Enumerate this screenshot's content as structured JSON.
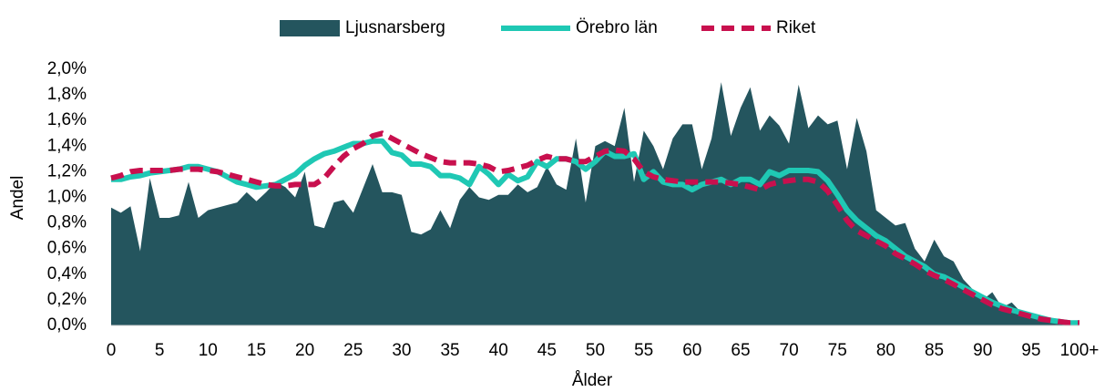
{
  "chart_data": {
    "type": "area-line",
    "categories": [
      "0",
      null,
      null,
      null,
      null,
      "5",
      null,
      null,
      null,
      null,
      "10",
      null,
      null,
      null,
      null,
      "15",
      null,
      null,
      null,
      null,
      "20",
      null,
      null,
      null,
      null,
      "25",
      null,
      null,
      null,
      null,
      "30",
      null,
      null,
      null,
      null,
      "35",
      null,
      null,
      null,
      null,
      "40",
      null,
      null,
      null,
      null,
      "45",
      null,
      null,
      null,
      null,
      "50",
      null,
      null,
      null,
      null,
      "55",
      null,
      null,
      null,
      null,
      "60",
      null,
      null,
      null,
      null,
      "65",
      null,
      null,
      null,
      null,
      "70",
      null,
      null,
      null,
      null,
      "75",
      null,
      null,
      null,
      null,
      "80",
      null,
      null,
      null,
      null,
      "85",
      null,
      null,
      null,
      null,
      "90",
      null,
      null,
      null,
      null,
      "95",
      null,
      null,
      null,
      null,
      "100+"
    ],
    "series": [
      {
        "name": "Ljusnarsberg",
        "color": "#24555e",
        "kind": "area",
        "values": [
          0.92,
          0.88,
          0.93,
          0.58,
          1.15,
          0.84,
          0.84,
          0.86,
          1.12,
          0.84,
          0.9,
          0.92,
          0.94,
          0.96,
          1.04,
          0.97,
          1.04,
          1.12,
          1.08,
          1.0,
          1.2,
          0.78,
          0.76,
          0.96,
          0.98,
          0.88,
          1.07,
          1.26,
          1.04,
          1.04,
          1.02,
          0.73,
          0.71,
          0.75,
          0.9,
          0.76,
          0.98,
          1.08,
          1.0,
          0.98,
          1.02,
          1.02,
          1.1,
          1.04,
          1.08,
          1.24,
          1.1,
          1.06,
          1.46,
          0.96,
          1.4,
          1.44,
          1.4,
          1.7,
          1.12,
          1.52,
          1.4,
          1.22,
          1.46,
          1.57,
          1.57,
          1.22,
          1.46,
          1.9,
          1.48,
          1.7,
          1.86,
          1.52,
          1.64,
          1.56,
          1.42,
          1.88,
          1.54,
          1.64,
          1.57,
          1.6,
          1.22,
          1.62,
          1.36,
          0.9,
          0.84,
          0.78,
          0.8,
          0.6,
          0.5,
          0.67,
          0.54,
          0.5,
          0.36,
          0.28,
          0.2,
          0.26,
          0.14,
          0.18,
          0.1,
          0.08,
          0.05,
          0.04,
          0.03,
          0.02,
          0.03
        ]
      },
      {
        "name": "Örebro län",
        "color": "#1fc8b4",
        "kind": "line",
        "values": [
          1.14,
          1.14,
          1.16,
          1.17,
          1.19,
          1.2,
          1.21,
          1.22,
          1.24,
          1.24,
          1.22,
          1.2,
          1.16,
          1.12,
          1.1,
          1.08,
          1.09,
          1.1,
          1.14,
          1.18,
          1.25,
          1.3,
          1.34,
          1.36,
          1.39,
          1.42,
          1.42,
          1.44,
          1.44,
          1.35,
          1.33,
          1.26,
          1.26,
          1.24,
          1.17,
          1.17,
          1.15,
          1.1,
          1.24,
          1.18,
          1.1,
          1.18,
          1.13,
          1.16,
          1.28,
          1.24,
          1.3,
          1.3,
          1.28,
          1.22,
          1.28,
          1.36,
          1.32,
          1.32,
          1.34,
          1.14,
          1.2,
          1.12,
          1.1,
          1.1,
          1.06,
          1.1,
          1.12,
          1.14,
          1.1,
          1.14,
          1.14,
          1.1,
          1.2,
          1.17,
          1.21,
          1.21,
          1.21,
          1.2,
          1.13,
          1.02,
          0.9,
          0.82,
          0.76,
          0.7,
          0.66,
          0.6,
          0.54,
          0.5,
          0.46,
          0.4,
          0.38,
          0.34,
          0.3,
          0.26,
          0.22,
          0.18,
          0.15,
          0.12,
          0.1,
          0.08,
          0.06,
          0.04,
          0.03,
          0.02,
          0.02
        ]
      },
      {
        "name": "Riket",
        "color": "#c8104e",
        "kind": "dashed",
        "values": [
          1.15,
          1.17,
          1.2,
          1.21,
          1.21,
          1.21,
          1.21,
          1.22,
          1.22,
          1.22,
          1.21,
          1.2,
          1.18,
          1.16,
          1.14,
          1.12,
          1.1,
          1.09,
          1.09,
          1.1,
          1.1,
          1.1,
          1.15,
          1.24,
          1.32,
          1.38,
          1.42,
          1.48,
          1.5,
          1.46,
          1.42,
          1.38,
          1.34,
          1.31,
          1.28,
          1.27,
          1.27,
          1.27,
          1.26,
          1.24,
          1.2,
          1.21,
          1.23,
          1.25,
          1.29,
          1.32,
          1.3,
          1.3,
          1.28,
          1.28,
          1.32,
          1.36,
          1.37,
          1.36,
          1.3,
          1.2,
          1.16,
          1.14,
          1.13,
          1.12,
          1.12,
          1.12,
          1.12,
          1.12,
          1.11,
          1.1,
          1.08,
          1.06,
          1.1,
          1.12,
          1.13,
          1.14,
          1.14,
          1.12,
          1.05,
          0.94,
          0.82,
          0.74,
          0.7,
          0.66,
          0.62,
          0.56,
          0.52,
          0.48,
          0.43,
          0.39,
          0.36,
          0.32,
          0.28,
          0.24,
          0.2,
          0.16,
          0.13,
          0.11,
          0.09,
          0.07,
          0.05,
          0.04,
          0.03,
          0.02,
          0.02
        ]
      }
    ],
    "ylim": [
      0,
      2.0
    ],
    "yticks": [
      {
        "value": 0,
        "label": "0,0%"
      },
      {
        "value": 0.2,
        "label": "0,2%"
      },
      {
        "value": 0.4,
        "label": "0,4%"
      },
      {
        "value": 0.6,
        "label": "0,6%"
      },
      {
        "value": 0.8,
        "label": "0,8%"
      },
      {
        "value": 1.0,
        "label": "1,0%"
      },
      {
        "value": 1.2,
        "label": "1,2%"
      },
      {
        "value": 1.4,
        "label": "1,4%"
      },
      {
        "value": 1.6,
        "label": "1,6%"
      },
      {
        "value": 1.8,
        "label": "1,8%"
      },
      {
        "value": 2.0,
        "label": "2,0%"
      }
    ],
    "x_label": "Ålder",
    "y_label": "Andel",
    "legend": "top"
  }
}
